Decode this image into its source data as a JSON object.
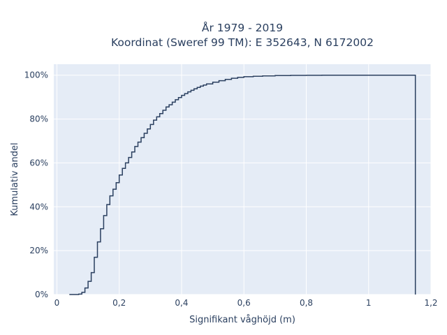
{
  "chart_data": {
    "type": "line",
    "title_lines": [
      "År 1979 - 2019",
      "Koordinat (Sweref 99 TM): E 352643, N 6172002"
    ],
    "xlabel": "Signifikant våghöjd (m)",
    "ylabel": "Kumulativ andel",
    "xlim": [
      -0.01,
      1.2
    ],
    "ylim": [
      0,
      1.05
    ],
    "xticks": [
      {
        "value": 0,
        "label": "0"
      },
      {
        "value": 0.2,
        "label": "0,2"
      },
      {
        "value": 0.4,
        "label": "0,4"
      },
      {
        "value": 0.6,
        "label": "0,6"
      },
      {
        "value": 0.8,
        "label": "0,8"
      },
      {
        "value": 1.0,
        "label": "1"
      },
      {
        "value": 1.2,
        "label": "1,2"
      }
    ],
    "yticks": [
      {
        "value": 0,
        "label": "0%"
      },
      {
        "value": 0.2,
        "label": "20%"
      },
      {
        "value": 0.4,
        "label": "40%"
      },
      {
        "value": 0.6,
        "label": "60%"
      },
      {
        "value": 0.8,
        "label": "80%"
      },
      {
        "value": 1.0,
        "label": "100%"
      }
    ],
    "grid": true,
    "line_color": "#2a3f5f",
    "plot_background": "#e5ecf6",
    "series": [
      {
        "x": [
          0.04,
          0.07,
          0.08,
          0.09,
          0.1,
          0.11,
          0.12,
          0.13,
          0.14,
          0.15,
          0.16,
          0.17,
          0.18,
          0.19,
          0.2,
          0.21,
          0.22,
          0.23,
          0.24,
          0.25,
          0.26,
          0.27,
          0.28,
          0.29,
          0.3,
          0.31,
          0.32,
          0.33,
          0.34,
          0.35,
          0.36,
          0.37,
          0.38,
          0.39,
          0.4,
          0.41,
          0.42,
          0.43,
          0.44,
          0.45,
          0.46,
          0.47,
          0.48,
          0.5,
          0.52,
          0.54,
          0.56,
          0.58,
          0.6,
          0.63,
          0.66,
          0.7,
          0.75,
          0.8,
          0.85,
          0.9,
          1.0,
          1.15
        ],
        "y": [
          0.0,
          0.002,
          0.01,
          0.03,
          0.06,
          0.1,
          0.17,
          0.24,
          0.3,
          0.36,
          0.41,
          0.45,
          0.48,
          0.51,
          0.545,
          0.575,
          0.6,
          0.625,
          0.65,
          0.675,
          0.695,
          0.715,
          0.735,
          0.755,
          0.775,
          0.795,
          0.81,
          0.825,
          0.84,
          0.855,
          0.865,
          0.877,
          0.888,
          0.898,
          0.908,
          0.916,
          0.924,
          0.931,
          0.938,
          0.944,
          0.95,
          0.955,
          0.96,
          0.968,
          0.975,
          0.981,
          0.986,
          0.99,
          0.993,
          0.995,
          0.997,
          0.998,
          0.999,
          0.9995,
          0.9998,
          1.0,
          1.0,
          1.0
        ]
      }
    ]
  }
}
